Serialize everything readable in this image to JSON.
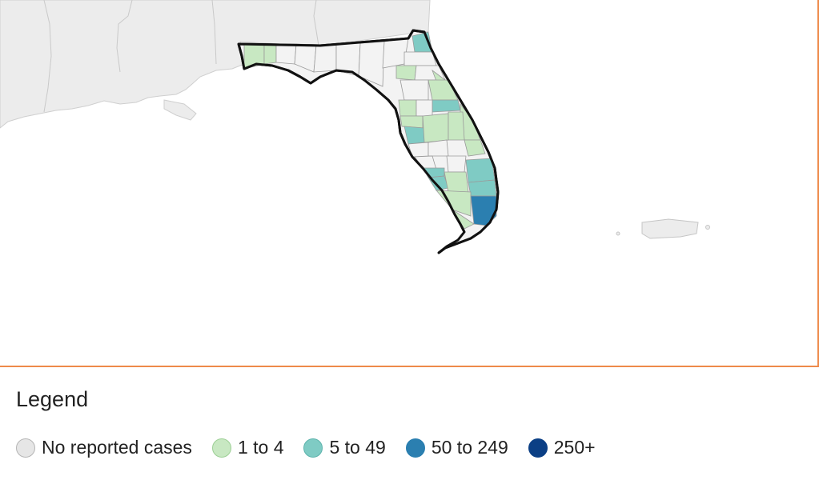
{
  "legend": {
    "title": "Legend",
    "items": [
      {
        "label": "No reported cases",
        "color": "#e6e6e6",
        "stroke": "#b5b5b5"
      },
      {
        "label": "1 to 4",
        "color": "#c8e8c2",
        "stroke": "#9ccf95"
      },
      {
        "label": "5 to 49",
        "color": "#7fcbc4",
        "stroke": "#5db3ac"
      },
      {
        "label": "50 to 249",
        "color": "#2b7fb0",
        "stroke": "#2b7fb0"
      },
      {
        "label": "250+",
        "color": "#0b3f85",
        "stroke": "#0b3f85"
      }
    ]
  },
  "map": {
    "state": "Florida",
    "region_fill": "#ececec",
    "county_fill": "#f2f2f2",
    "outline_color": "#111111",
    "frame_color": "#ee8a4a"
  }
}
